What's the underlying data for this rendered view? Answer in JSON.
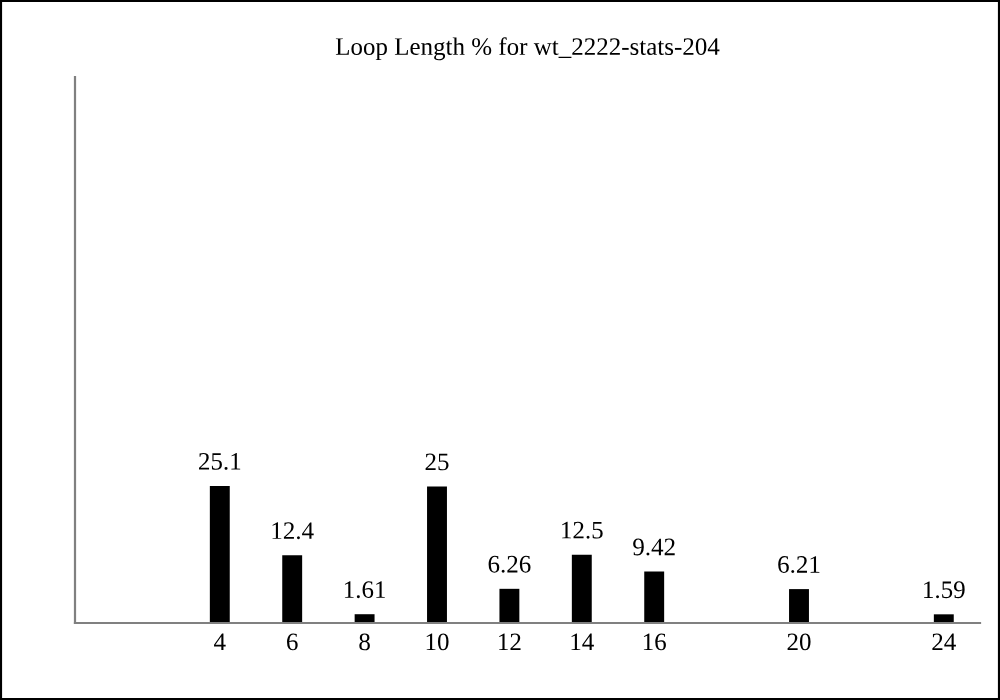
{
  "chart_data": {
    "type": "bar",
    "title": "Loop Length % for wt_2222-stats-204",
    "x": [
      4,
      6,
      8,
      10,
      12,
      14,
      16,
      20,
      24
    ],
    "values": [
      25.1,
      12.4,
      1.61,
      25,
      6.26,
      12.5,
      9.42,
      6.21,
      1.59
    ],
    "color": "#000000",
    "xlim": [
      0,
      25
    ],
    "xticks": [
      4,
      6,
      8,
      10,
      12,
      14,
      16,
      20,
      24
    ],
    "ylim": [
      0,
      100
    ],
    "tick_labels": "x",
    "data_labels": true,
    "grid": false
  }
}
